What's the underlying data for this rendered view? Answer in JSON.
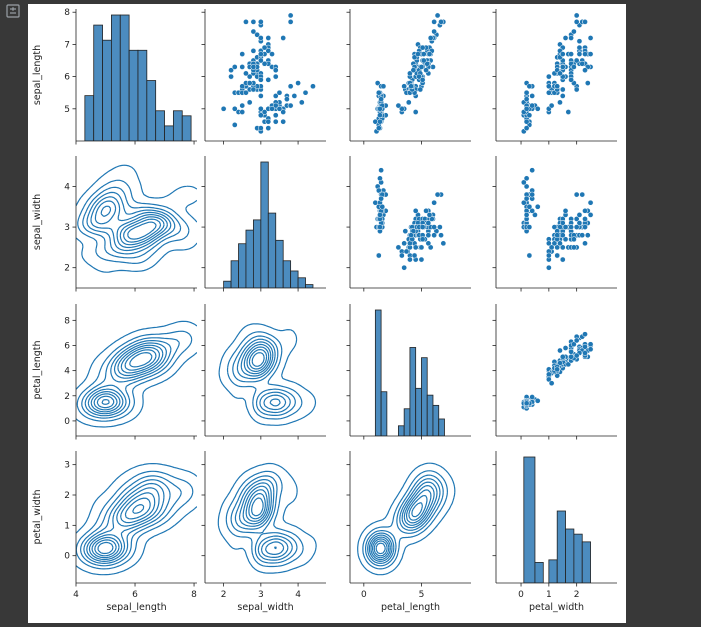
{
  "app": {
    "output_icon": "output-toggle-icon"
  },
  "colors": {
    "page_bg": "#383838",
    "figure_bg": "#ffffff",
    "series": "#1f77b4",
    "hist_fill": "#4c8cbf",
    "axis": "#222222"
  },
  "chart_data": {
    "type": "pairplot",
    "variables": [
      "sepal_length",
      "sepal_width",
      "petal_length",
      "petal_width"
    ],
    "ranges": {
      "sepal_length": [
        4.0,
        8.1
      ],
      "sepal_width": [
        1.5,
        4.75
      ],
      "petal_length": [
        -1.2,
        9.3
      ],
      "petal_width": [
        -0.9,
        3.45
      ]
    },
    "ticks": {
      "sepal_length": [
        4,
        6,
        8
      ],
      "sepal_length_y": [
        5,
        6,
        7,
        8
      ],
      "sepal_width": [
        2,
        3,
        4
      ],
      "petal_length": [
        0,
        5
      ],
      "petal_length_y": [
        0,
        2,
        4,
        6,
        8
      ],
      "petal_width": [
        0,
        1,
        2
      ],
      "petal_width_y": [
        0,
        1,
        2,
        3
      ]
    },
    "upper": "scatter",
    "diagonal": "hist",
    "lower": "kde",
    "histograms": {
      "sepal_length": {
        "bin_edges": [
          4.3,
          4.6,
          4.9,
          5.2,
          5.5,
          5.8,
          6.1,
          6.4,
          6.7,
          7.0,
          7.3,
          7.6,
          7.9
        ],
        "counts": [
          9,
          23,
          20,
          25,
          25,
          18,
          18,
          12,
          6,
          3,
          6,
          5
        ]
      },
      "sepal_width": {
        "bin_edges": [
          2.0,
          2.2,
          2.4,
          2.6,
          2.8,
          3.0,
          3.2,
          3.4,
          3.6,
          3.8,
          4.0,
          4.2,
          4.4
        ],
        "counts": [
          2,
          8,
          13,
          17,
          20,
          37,
          22,
          14,
          8,
          5,
          3,
          1
        ]
      },
      "petal_length": {
        "bin_edges": [
          1.0,
          1.5,
          2.0,
          2.5,
          3.0,
          3.5,
          4.0,
          4.5,
          5.0,
          5.5,
          6.0,
          6.5,
          7.0
        ],
        "counts": [
          37,
          13,
          0,
          0,
          3,
          8,
          26,
          14,
          23,
          12,
          9,
          5
        ]
      },
      "petal_width": {
        "bin_edges": [
          0.1,
          0.5,
          0.8,
          1.0,
          1.3,
          1.6,
          1.9,
          2.2,
          2.5
        ],
        "counts": [
          49,
          8,
          0,
          9,
          28,
          21,
          19,
          16
        ]
      }
    },
    "samples": {
      "sepal_length": [
        5.1,
        4.9,
        4.7,
        4.6,
        5.0,
        5.4,
        4.6,
        5.0,
        4.4,
        4.9,
        5.4,
        4.8,
        4.8,
        4.3,
        5.8,
        5.7,
        5.4,
        5.1,
        5.7,
        5.1,
        5.4,
        5.1,
        4.6,
        5.1,
        4.8,
        5.0,
        5.0,
        5.2,
        5.2,
        4.7,
        4.8,
        5.4,
        5.2,
        5.5,
        4.9,
        5.0,
        5.5,
        4.9,
        4.4,
        5.1,
        5.0,
        4.5,
        4.4,
        5.0,
        5.1,
        4.8,
        5.1,
        4.6,
        5.3,
        5.0,
        7.0,
        6.4,
        6.9,
        5.5,
        6.5,
        5.7,
        6.3,
        4.9,
        6.6,
        5.2,
        5.0,
        5.9,
        6.0,
        6.1,
        5.6,
        6.7,
        5.6,
        5.8,
        6.2,
        5.6,
        5.9,
        6.1,
        6.3,
        6.1,
        6.4,
        6.6,
        6.8,
        6.7,
        6.0,
        5.7,
        5.5,
        5.5,
        5.8,
        6.0,
        5.4,
        6.0,
        6.7,
        6.3,
        5.6,
        5.5,
        5.5,
        6.1,
        5.8,
        5.0,
        5.6,
        5.7,
        5.7,
        6.2,
        5.1,
        5.7,
        6.3,
        5.8,
        7.1,
        6.3,
        6.5,
        7.6,
        4.9,
        7.3,
        6.7,
        7.2,
        6.5,
        6.4,
        6.8,
        5.7,
        5.8,
        6.4,
        6.5,
        7.7,
        7.7,
        6.0,
        6.9,
        5.6,
        7.7,
        6.3,
        6.7,
        7.2,
        6.2,
        6.1,
        6.4,
        7.2,
        7.4,
        7.9,
        6.4,
        6.3,
        6.1,
        7.7,
        6.3,
        6.4,
        6.0,
        6.9,
        6.7,
        6.9,
        5.8,
        6.8,
        6.7,
        6.7,
        6.3,
        6.5,
        6.2,
        5.9
      ],
      "sepal_width": [
        3.5,
        3.0,
        3.2,
        3.1,
        3.6,
        3.9,
        3.4,
        3.4,
        2.9,
        3.1,
        3.7,
        3.4,
        3.0,
        3.0,
        4.0,
        4.4,
        3.9,
        3.5,
        3.8,
        3.8,
        3.4,
        3.7,
        3.6,
        3.3,
        3.4,
        3.0,
        3.4,
        3.5,
        3.4,
        3.2,
        3.1,
        3.4,
        4.1,
        4.2,
        3.1,
        3.2,
        3.5,
        3.6,
        3.0,
        3.4,
        3.5,
        2.3,
        3.2,
        3.5,
        3.8,
        3.0,
        3.8,
        3.2,
        3.7,
        3.3,
        3.2,
        3.2,
        3.1,
        2.3,
        2.8,
        2.8,
        3.3,
        2.4,
        2.9,
        2.7,
        2.0,
        3.0,
        2.2,
        2.9,
        2.9,
        3.1,
        3.0,
        2.7,
        2.2,
        2.5,
        3.2,
        2.8,
        2.5,
        2.8,
        2.9,
        3.0,
        2.8,
        3.0,
        2.9,
        2.6,
        2.4,
        2.4,
        2.7,
        2.7,
        3.0,
        3.4,
        3.1,
        2.3,
        3.0,
        2.5,
        2.6,
        3.0,
        2.6,
        2.3,
        2.7,
        3.0,
        2.9,
        2.9,
        2.5,
        2.8,
        3.3,
        2.7,
        3.0,
        2.9,
        3.0,
        3.0,
        2.5,
        2.9,
        2.5,
        3.6,
        3.2,
        2.7,
        3.0,
        2.5,
        2.8,
        3.2,
        3.0,
        3.8,
        2.6,
        2.2,
        3.2,
        2.8,
        2.8,
        2.7,
        3.3,
        3.2,
        2.8,
        3.0,
        2.8,
        3.0,
        2.8,
        3.8,
        2.8,
        2.8,
        2.6,
        3.0,
        3.4,
        3.1,
        3.0,
        3.1,
        3.1,
        3.1,
        2.7,
        3.2,
        3.3,
        3.0,
        2.5,
        3.0,
        3.4,
        3.0
      ],
      "petal_length": [
        1.4,
        1.4,
        1.3,
        1.5,
        1.4,
        1.7,
        1.4,
        1.5,
        1.4,
        1.5,
        1.5,
        1.6,
        1.4,
        1.1,
        1.2,
        1.5,
        1.3,
        1.4,
        1.7,
        1.5,
        1.7,
        1.5,
        1.0,
        1.7,
        1.9,
        1.6,
        1.6,
        1.5,
        1.4,
        1.6,
        1.6,
        1.5,
        1.5,
        1.4,
        1.5,
        1.2,
        1.3,
        1.4,
        1.3,
        1.5,
        1.3,
        1.3,
        1.3,
        1.6,
        1.9,
        1.4,
        1.6,
        1.4,
        1.5,
        1.4,
        4.7,
        4.5,
        4.9,
        4.0,
        4.6,
        4.5,
        4.7,
        3.3,
        4.6,
        3.9,
        3.5,
        4.2,
        4.0,
        4.7,
        3.6,
        4.4,
        4.5,
        4.1,
        4.5,
        3.9,
        4.8,
        4.0,
        4.9,
        4.7,
        4.3,
        4.4,
        4.8,
        5.0,
        4.5,
        3.5,
        3.8,
        3.7,
        3.9,
        5.1,
        4.5,
        4.5,
        4.7,
        4.4,
        4.1,
        4.0,
        4.4,
        4.6,
        4.0,
        3.3,
        4.2,
        4.2,
        4.2,
        4.3,
        3.0,
        4.1,
        6.0,
        5.1,
        5.9,
        5.6,
        5.8,
        6.6,
        4.5,
        6.3,
        5.8,
        6.1,
        5.1,
        5.3,
        5.5,
        5.0,
        5.1,
        5.3,
        5.5,
        6.7,
        6.9,
        5.0,
        5.7,
        4.9,
        6.7,
        4.9,
        5.7,
        6.0,
        4.8,
        4.9,
        5.6,
        5.8,
        6.1,
        6.4,
        5.6,
        5.1,
        5.6,
        6.1,
        5.6,
        5.5,
        4.8,
        5.4,
        5.6,
        5.1,
        5.1,
        5.9,
        5.7,
        5.2,
        5.0,
        5.2,
        5.4,
        5.1
      ],
      "petal_width": [
        0.2,
        0.2,
        0.2,
        0.2,
        0.2,
        0.4,
        0.3,
        0.2,
        0.2,
        0.1,
        0.2,
        0.2,
        0.1,
        0.1,
        0.2,
        0.4,
        0.4,
        0.3,
        0.3,
        0.3,
        0.2,
        0.4,
        0.2,
        0.5,
        0.2,
        0.2,
        0.4,
        0.2,
        0.2,
        0.2,
        0.2,
        0.4,
        0.1,
        0.2,
        0.2,
        0.2,
        0.2,
        0.1,
        0.2,
        0.2,
        0.3,
        0.3,
        0.2,
        0.6,
        0.4,
        0.3,
        0.2,
        0.2,
        0.2,
        0.2,
        1.4,
        1.5,
        1.5,
        1.3,
        1.5,
        1.3,
        1.6,
        1.0,
        1.3,
        1.4,
        1.0,
        1.5,
        1.0,
        1.4,
        1.3,
        1.4,
        1.5,
        1.0,
        1.5,
        1.1,
        1.8,
        1.3,
        1.5,
        1.2,
        1.3,
        1.4,
        1.4,
        1.7,
        1.5,
        1.0,
        1.1,
        1.0,
        1.2,
        1.6,
        1.5,
        1.6,
        1.5,
        1.3,
        1.3,
        1.3,
        1.2,
        1.4,
        1.2,
        1.0,
        1.3,
        1.2,
        1.3,
        1.3,
        1.1,
        1.3,
        2.5,
        1.9,
        2.1,
        1.8,
        2.2,
        2.1,
        1.7,
        1.8,
        1.8,
        2.5,
        2.0,
        1.9,
        2.1,
        2.0,
        2.4,
        2.3,
        1.8,
        2.2,
        2.3,
        1.5,
        2.3,
        2.0,
        2.0,
        1.8,
        2.1,
        1.8,
        1.8,
        1.8,
        2.1,
        1.6,
        1.9,
        2.0,
        2.2,
        1.5,
        1.4,
        2.3,
        2.4,
        1.8,
        1.8,
        2.1,
        2.4,
        2.3,
        1.9,
        2.3,
        2.5,
        2.3,
        1.9,
        2.0,
        2.3,
        1.8
      ]
    }
  }
}
